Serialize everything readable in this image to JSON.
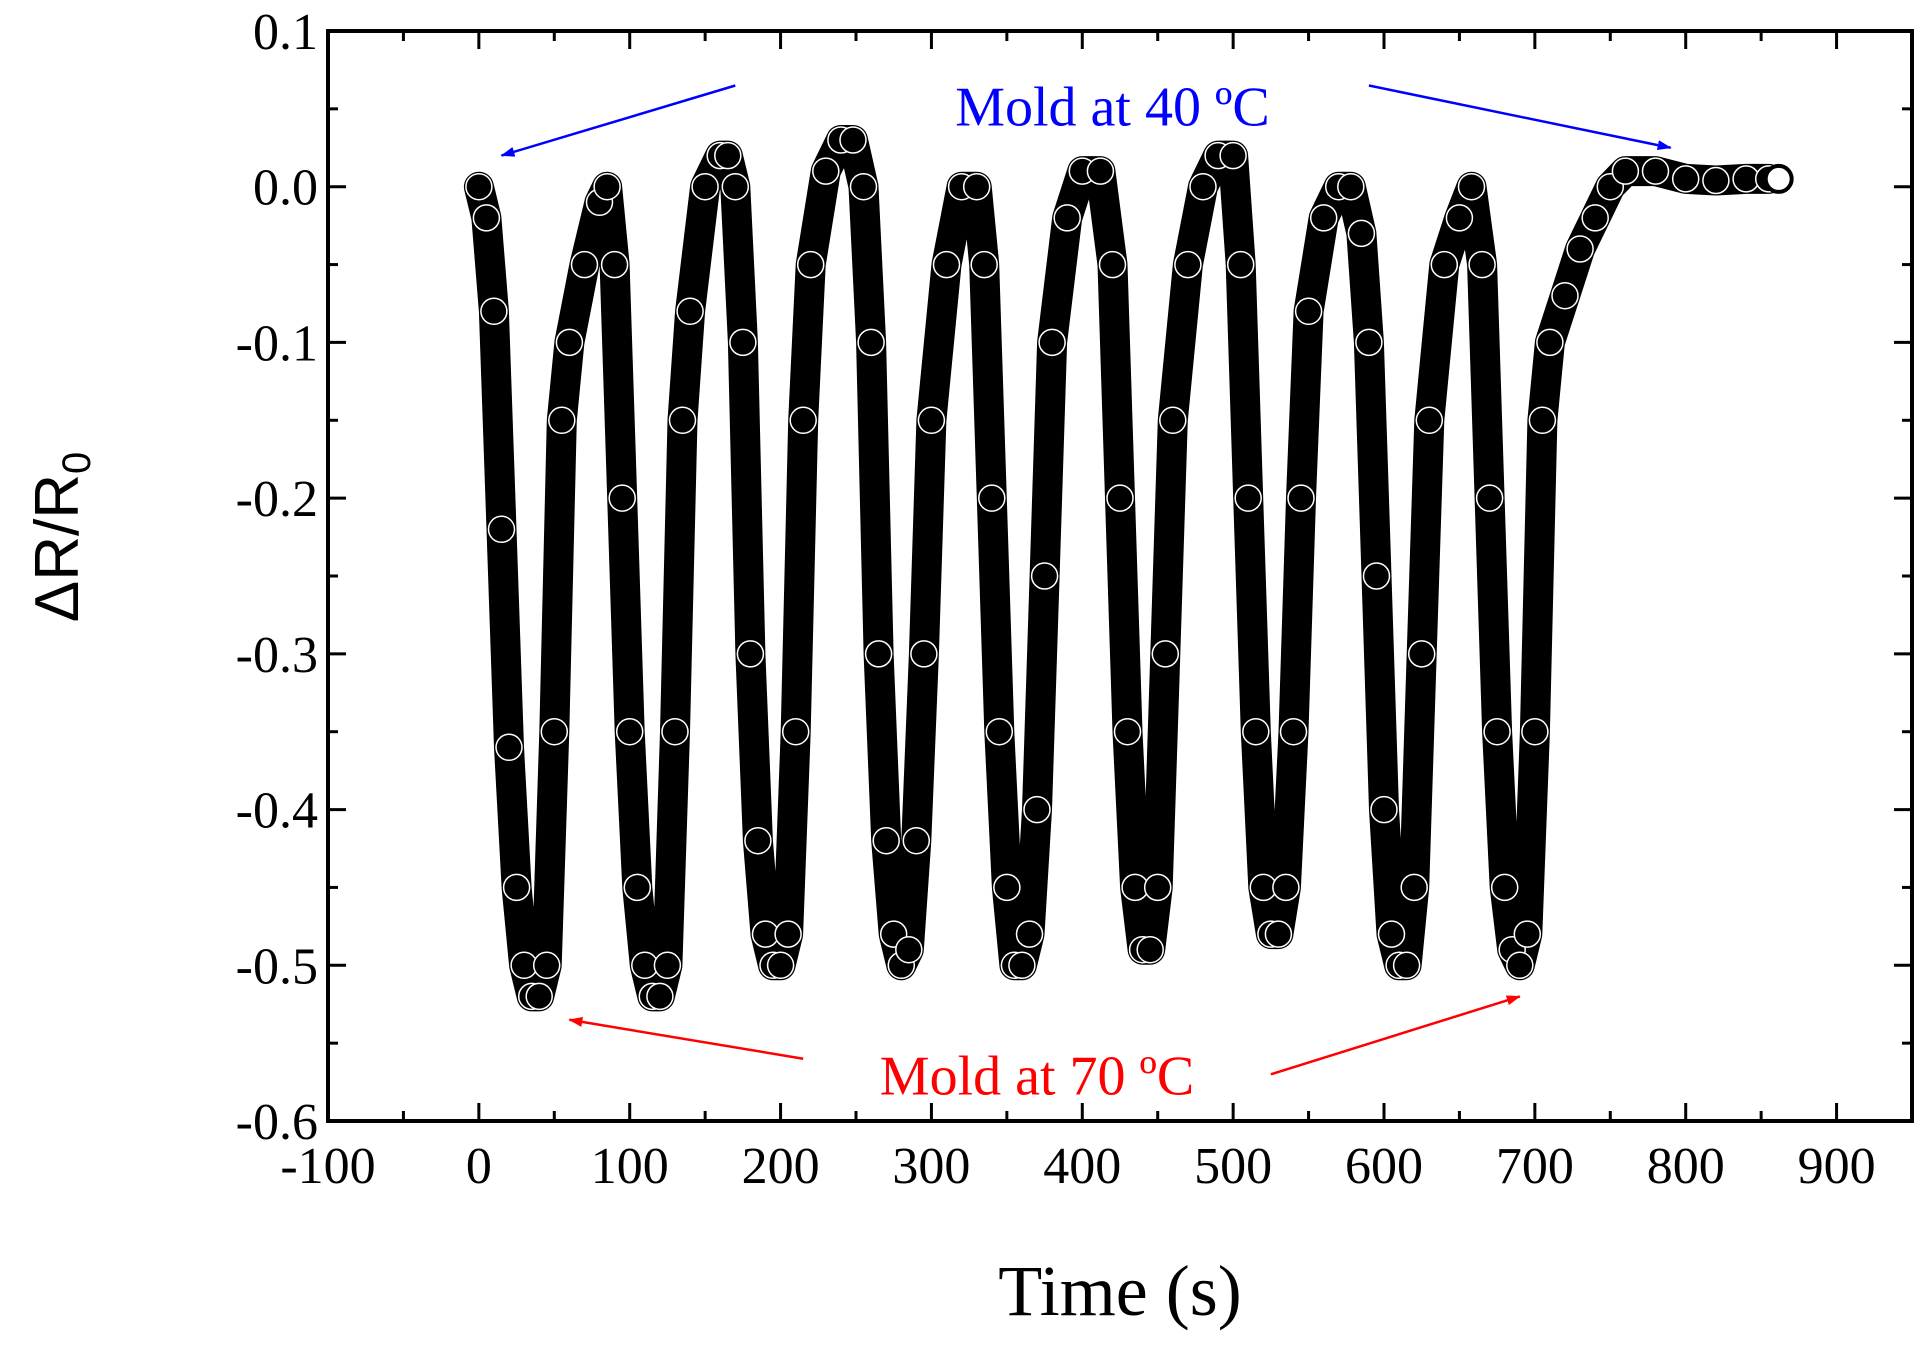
{
  "chart_data": {
    "type": "scatter",
    "title": "",
    "xlabel": "Time (s)",
    "ylabel_main": "ΔR/R",
    "ylabel_sub": "0",
    "xlim": [
      -100,
      950
    ],
    "ylim": [
      -0.6,
      0.1
    ],
    "xticks": [
      -100,
      0,
      100,
      200,
      300,
      400,
      500,
      600,
      700,
      800,
      900
    ],
    "xtick_labels": [
      "-100",
      "0",
      "100",
      "200",
      "300",
      "400",
      "500",
      "600",
      "700",
      "800",
      "900"
    ],
    "yticks": [
      0.1,
      0.0,
      -0.1,
      -0.2,
      -0.3,
      -0.4,
      -0.5,
      -0.6
    ],
    "ytick_labels": [
      "0.1",
      "0.0",
      "-0.1",
      "-0.2",
      "-0.3",
      "-0.4",
      "-0.5",
      "-0.6"
    ],
    "marker": "open-circle",
    "series": [
      {
        "name": "dR/R0",
        "x": [
          0,
          5,
          10,
          15,
          20,
          25,
          30,
          35,
          40,
          45,
          50,
          55,
          60,
          70,
          80,
          85,
          90,
          95,
          100,
          105,
          110,
          115,
          120,
          125,
          130,
          135,
          140,
          150,
          160,
          165,
          170,
          175,
          180,
          185,
          190,
          195,
          200,
          205,
          210,
          215,
          220,
          230,
          240,
          248,
          255,
          260,
          265,
          270,
          275,
          280,
          285,
          290,
          295,
          300,
          310,
          320,
          330,
          335,
          340,
          345,
          350,
          355,
          360,
          365,
          370,
          375,
          380,
          390,
          400,
          412,
          420,
          425,
          430,
          435,
          440,
          445,
          450,
          455,
          460,
          470,
          480,
          490,
          500,
          505,
          510,
          515,
          520,
          525,
          530,
          535,
          540,
          545,
          550,
          560,
          570,
          578,
          585,
          590,
          595,
          600,
          605,
          610,
          615,
          620,
          625,
          630,
          640,
          650,
          658,
          665,
          670,
          675,
          680,
          685,
          690,
          695,
          700,
          705,
          710,
          720,
          730,
          740,
          750,
          760,
          780,
          800,
          820,
          840,
          855
        ],
        "y": [
          0.0,
          -0.02,
          -0.08,
          -0.22,
          -0.36,
          -0.45,
          -0.5,
          -0.52,
          -0.52,
          -0.5,
          -0.35,
          -0.15,
          -0.1,
          -0.05,
          -0.01,
          0.0,
          -0.05,
          -0.2,
          -0.35,
          -0.45,
          -0.5,
          -0.52,
          -0.52,
          -0.5,
          -0.35,
          -0.15,
          -0.08,
          0.0,
          0.02,
          0.02,
          0.0,
          -0.1,
          -0.3,
          -0.42,
          -0.48,
          -0.5,
          -0.5,
          -0.48,
          -0.35,
          -0.15,
          -0.05,
          0.01,
          0.03,
          0.03,
          0.0,
          -0.1,
          -0.3,
          -0.42,
          -0.48,
          -0.5,
          -0.49,
          -0.42,
          -0.3,
          -0.15,
          -0.05,
          0.0,
          0.0,
          -0.05,
          -0.2,
          -0.35,
          -0.45,
          -0.5,
          -0.5,
          -0.48,
          -0.4,
          -0.25,
          -0.1,
          -0.02,
          0.01,
          0.01,
          -0.05,
          -0.2,
          -0.35,
          -0.45,
          -0.49,
          -0.49,
          -0.45,
          -0.3,
          -0.15,
          -0.05,
          0.0,
          0.02,
          0.02,
          -0.05,
          -0.2,
          -0.35,
          -0.45,
          -0.48,
          -0.48,
          -0.45,
          -0.35,
          -0.2,
          -0.08,
          -0.02,
          0.0,
          0.0,
          -0.03,
          -0.1,
          -0.25,
          -0.4,
          -0.48,
          -0.5,
          -0.5,
          -0.45,
          -0.3,
          -0.15,
          -0.05,
          -0.02,
          0.0,
          -0.05,
          -0.2,
          -0.35,
          -0.45,
          -0.49,
          -0.5,
          -0.48,
          -0.35,
          -0.15,
          -0.1,
          -0.07,
          -0.04,
          -0.02,
          0.0,
          0.01,
          0.01,
          0.005,
          0.004,
          0.005,
          0.005
        ]
      }
    ],
    "annotations": [
      {
        "text": "Mold at 40 ºC",
        "color": "#0000ff",
        "label_x": 420,
        "label_y": 0.052,
        "arrow_from": [
          [
            170,
            0.065
          ],
          [
            590,
            0.065
          ]
        ],
        "arrow_to": [
          [
            15,
            0.02
          ],
          [
            790,
            0.025
          ]
        ]
      },
      {
        "text": "Mold at 70 ºC",
        "color": "#ff0000",
        "label_x": 370,
        "label_y": -0.57,
        "arrow_from": [
          [
            215,
            -0.56
          ],
          [
            525,
            -0.57
          ]
        ],
        "arrow_to": [
          [
            60,
            -0.535
          ],
          [
            690,
            -0.52
          ]
        ]
      }
    ]
  }
}
